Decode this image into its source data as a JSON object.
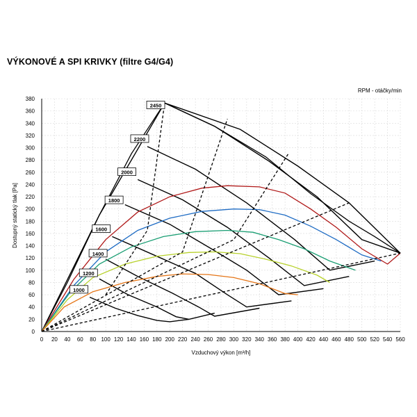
{
  "title": "VÝKONOVÉ A SPI KRIVKY (filtre G4/G4)",
  "chart_data": {
    "type": "line",
    "title": "VÝKONOVÉ A SPI KRIVKY (filtre G4/G4)",
    "xlabel": "Vzduchový výkon [m³/h]",
    "ylabel": "Dostupný statický tlak [Pa]",
    "legend_title": "RPM - otáčky/min",
    "xlim": [
      0,
      560
    ],
    "ylim": [
      0,
      380
    ],
    "x_ticks": [
      0,
      20,
      40,
      60,
      80,
      100,
      120,
      140,
      160,
      180,
      200,
      220,
      240,
      260,
      280,
      300,
      320,
      340,
      360,
      380,
      400,
      420,
      440,
      460,
      480,
      500,
      520,
      540,
      560
    ],
    "y_ticks": [
      0,
      20,
      40,
      60,
      80,
      100,
      120,
      140,
      160,
      180,
      200,
      220,
      240,
      260,
      280,
      300,
      320,
      340,
      360,
      380
    ],
    "grid": true,
    "envelope": {
      "color": "#000000",
      "points": [
        [
          0,
          0
        ],
        [
          90,
          190
        ],
        [
          192,
          373
        ],
        [
          310,
          330
        ],
        [
          400,
          270
        ],
        [
          480,
          210
        ],
        [
          560,
          128
        ]
      ]
    },
    "rpm_curves": [
      {
        "name": "2450",
        "color": "#000000",
        "points": [
          [
            192,
            373
          ],
          [
            270,
            335
          ],
          [
            355,
            278
          ],
          [
            430,
            220
          ],
          [
            500,
            150
          ],
          [
            560,
            128
          ]
        ]
      },
      {
        "name": "2200",
        "color": "#000000",
        "points": [
          [
            165,
            302
          ],
          [
            240,
            265
          ],
          [
            320,
            210
          ],
          [
            395,
            150
          ],
          [
            450,
            100
          ],
          [
            520,
            115
          ]
        ]
      },
      {
        "name": "2000",
        "color": "#000000",
        "points": [
          [
            150,
            248
          ],
          [
            220,
            215
          ],
          [
            290,
            170
          ],
          [
            355,
            120
          ],
          [
            410,
            75
          ],
          [
            480,
            90
          ]
        ]
      },
      {
        "name": "1800",
        "color": "#000000",
        "points": [
          [
            130,
            207
          ],
          [
            200,
            175
          ],
          [
            265,
            135
          ],
          [
            320,
            100
          ],
          [
            370,
            60
          ],
          [
            440,
            70
          ]
        ]
      },
      {
        "name": "1600",
        "color": "#000000",
        "points": [
          [
            110,
            155
          ],
          [
            175,
            125
          ],
          [
            240,
            95
          ],
          [
            290,
            60
          ],
          [
            320,
            40
          ],
          [
            390,
            50
          ]
        ]
      },
      {
        "name": "1400",
        "color": "#000000",
        "points": [
          [
            100,
            118
          ],
          [
            150,
            90
          ],
          [
            205,
            62
          ],
          [
            245,
            40
          ],
          [
            270,
            25
          ],
          [
            340,
            38
          ]
        ]
      },
      {
        "name": "1200",
        "color": "#000000",
        "points": [
          [
            90,
            86
          ],
          [
            135,
            60
          ],
          [
            180,
            40
          ],
          [
            210,
            24
          ],
          [
            230,
            20
          ],
          [
            270,
            30
          ]
        ]
      },
      {
        "name": "1000",
        "color": "#000000",
        "points": [
          [
            75,
            56
          ],
          [
            115,
            38
          ],
          [
            150,
            26
          ],
          [
            180,
            18
          ],
          [
            200,
            16
          ],
          [
            230,
            20
          ]
        ]
      }
    ],
    "series": [
      {
        "name": "2450",
        "color": "#000000",
        "points": [
          [
            0,
            0
          ],
          [
            40,
            80
          ],
          [
            90,
            190
          ],
          [
            140,
            290
          ],
          [
            192,
            373
          ],
          [
            270,
            335
          ],
          [
            350,
            285
          ],
          [
            420,
            225
          ],
          [
            480,
            180
          ],
          [
            520,
            155
          ],
          [
            560,
            128
          ]
        ]
      },
      {
        "name": "2200",
        "color": "#b01818",
        "points": [
          [
            0,
            0
          ],
          [
            50,
            85
          ],
          [
            100,
            150
          ],
          [
            150,
            195
          ],
          [
            200,
            220
          ],
          [
            250,
            234
          ],
          [
            290,
            238
          ],
          [
            340,
            236
          ],
          [
            380,
            226
          ],
          [
            420,
            200
          ],
          [
            460,
            170
          ],
          [
            500,
            135
          ],
          [
            540,
            110
          ],
          [
            560,
            128
          ]
        ]
      },
      {
        "name": "2000",
        "color": "#1f6cc4",
        "points": [
          [
            0,
            0
          ],
          [
            50,
            75
          ],
          [
            100,
            130
          ],
          [
            150,
            165
          ],
          [
            200,
            185
          ],
          [
            250,
            196
          ],
          [
            300,
            200
          ],
          [
            340,
            199
          ],
          [
            380,
            190
          ],
          [
            420,
            172
          ],
          [
            460,
            150
          ],
          [
            500,
            125
          ],
          [
            530,
            115
          ]
        ]
      },
      {
        "name": "1800",
        "color": "#1a9e73",
        "points": [
          [
            0,
            0
          ],
          [
            45,
            65
          ],
          [
            90,
            110
          ],
          [
            140,
            138
          ],
          [
            190,
            155
          ],
          [
            240,
            163
          ],
          [
            290,
            165
          ],
          [
            330,
            162
          ],
          [
            370,
            150
          ],
          [
            410,
            135
          ],
          [
            450,
            115
          ],
          [
            490,
            100
          ]
        ]
      },
      {
        "name": "1600",
        "color": "#b7d12a",
        "points": [
          [
            0,
            0
          ],
          [
            40,
            52
          ],
          [
            80,
            88
          ],
          [
            130,
            110
          ],
          [
            180,
            123
          ],
          [
            230,
            129
          ],
          [
            270,
            130
          ],
          [
            310,
            127
          ],
          [
            350,
            118
          ],
          [
            390,
            107
          ],
          [
            430,
            92
          ],
          [
            450,
            80
          ]
        ]
      },
      {
        "name": "1400",
        "color": "#e57517",
        "points": [
          [
            0,
            0
          ],
          [
            35,
            40
          ],
          [
            80,
            65
          ],
          [
            130,
            80
          ],
          [
            180,
            90
          ],
          [
            220,
            94
          ],
          [
            260,
            93
          ],
          [
            300,
            88
          ],
          [
            340,
            78
          ],
          [
            380,
            62
          ],
          [
            400,
            60
          ]
        ]
      },
      {
        "name": "1200",
        "color": "#e57517",
        "points": []
      },
      {
        "name": "1000",
        "color": "#e57517",
        "points": []
      }
    ],
    "dashed_lines": [
      {
        "label": "2450",
        "points": [
          [
            100,
            60
          ],
          [
            165,
            165
          ],
          [
            192,
            373
          ]
        ]
      },
      {
        "label": "2200",
        "points": [
          [
            0,
            0
          ],
          [
            220,
            130
          ],
          [
            290,
            347
          ]
        ]
      },
      {
        "label": "2000",
        "points": [
          [
            0,
            0
          ],
          [
            300,
            150
          ],
          [
            385,
            290
          ]
        ]
      },
      {
        "label": "1800",
        "points": [
          [
            0,
            0
          ],
          [
            560,
            128
          ]
        ]
      },
      {
        "label": "1600",
        "points": [
          [
            0,
            0
          ],
          [
            480,
            210
          ]
        ]
      }
    ],
    "labels": [
      {
        "text": "2450",
        "x": 165,
        "y": 367
      },
      {
        "text": "2200",
        "x": 140,
        "y": 312
      },
      {
        "text": "2000",
        "x": 120,
        "y": 258
      },
      {
        "text": "1800",
        "x": 100,
        "y": 212
      },
      {
        "text": "1600",
        "x": 80,
        "y": 165
      },
      {
        "text": "1400",
        "x": 75,
        "y": 125
      },
      {
        "text": "1200",
        "x": 60,
        "y": 93
      },
      {
        "text": "1000",
        "x": 45,
        "y": 66
      }
    ]
  }
}
